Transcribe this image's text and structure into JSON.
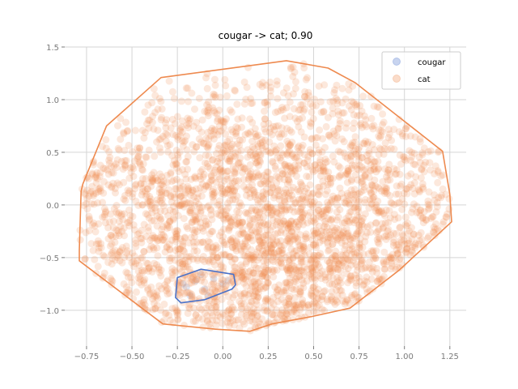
{
  "chart_data": {
    "type": "scatter",
    "title": "cougar -> cat; 0.90",
    "xlabel": "",
    "ylabel": "",
    "xlim": [
      -0.87,
      1.34
    ],
    "ylim": [
      -1.34,
      1.5
    ],
    "xticks": [
      -0.75,
      -0.5,
      -0.25,
      0.0,
      0.25,
      0.5,
      0.75,
      1.0,
      1.25
    ],
    "xtick_labels": [
      "−0.75",
      "−0.50",
      "−0.25",
      "0.00",
      "0.25",
      "0.50",
      "0.75",
      "1.00",
      "1.25"
    ],
    "yticks": [
      -1.0,
      -0.5,
      0.0,
      0.5,
      1.0,
      1.5
    ],
    "ytick_labels": [
      "−1.0",
      "−0.5",
      "0.0",
      "0.5",
      "1.0",
      "1.5"
    ],
    "grid": true,
    "legend_position": "top-right",
    "series": [
      {
        "name": "cougar",
        "color": "#4a72c9",
        "hull": [
          [
            -0.25,
            -0.69
          ],
          [
            -0.12,
            -0.61
          ],
          [
            0.06,
            -0.66
          ],
          [
            0.07,
            -0.76
          ],
          [
            0.05,
            -0.8
          ],
          [
            -0.1,
            -0.9
          ],
          [
            -0.23,
            -0.93
          ],
          [
            -0.26,
            -0.88
          ]
        ],
        "points": [
          [
            -0.2,
            -0.78
          ],
          [
            -0.15,
            -0.72
          ],
          [
            -0.1,
            -0.8
          ],
          [
            -0.05,
            -0.7
          ],
          [
            0.0,
            -0.75
          ],
          [
            -0.18,
            -0.86
          ],
          [
            -0.08,
            -0.86
          ],
          [
            0.03,
            -0.72
          ],
          [
            -0.22,
            -0.75
          ],
          [
            -0.12,
            -0.66
          ]
        ]
      },
      {
        "name": "cat",
        "color": "#ee8a4f",
        "hull": [
          [
            -0.34,
            1.21
          ],
          [
            0.35,
            1.37
          ],
          [
            0.58,
            1.3
          ],
          [
            0.73,
            1.16
          ],
          [
            1.21,
            0.51
          ],
          [
            1.25,
            0.1
          ],
          [
            1.26,
            -0.16
          ],
          [
            0.97,
            -0.62
          ],
          [
            0.7,
            -0.98
          ],
          [
            0.49,
            -1.06
          ],
          [
            0.27,
            -1.13
          ],
          [
            0.15,
            -1.2
          ],
          [
            -0.04,
            -1.18
          ],
          [
            -0.33,
            -1.13
          ],
          [
            -0.79,
            -0.53
          ],
          [
            -0.79,
            -0.43
          ],
          [
            -0.78,
            0.13
          ],
          [
            -0.77,
            0.2
          ],
          [
            -0.64,
            0.75
          ]
        ],
        "point_count": 3000
      }
    ]
  }
}
